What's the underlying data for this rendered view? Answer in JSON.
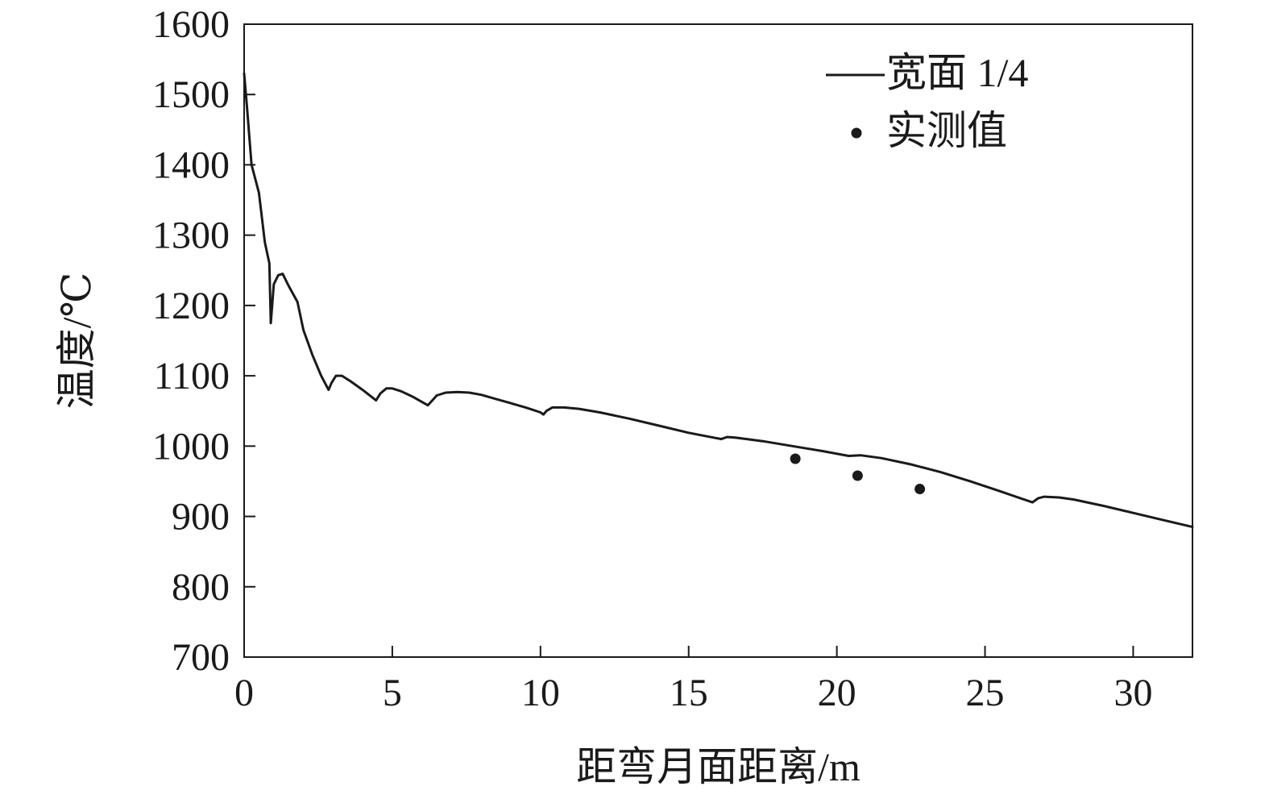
{
  "chart_data": {
    "type": "line",
    "xlabel": "距弯月面距离/m",
    "ylabel": "温度/℃",
    "xlim": [
      0,
      32
    ],
    "ylim": [
      700,
      1600
    ],
    "xticks": [
      0,
      5,
      10,
      15,
      20,
      25,
      30
    ],
    "yticks": [
      700,
      800,
      900,
      1000,
      1100,
      1200,
      1300,
      1400,
      1500,
      1600
    ],
    "grid": false,
    "legend_position": "top-right",
    "colors": {
      "line": "#1a1a1a",
      "marker": "#1a1a1a",
      "axis": "#1a1a1a"
    },
    "series": [
      {
        "name": "宽面 1/4",
        "type": "line",
        "x": [
          0.0,
          0.1,
          0.25,
          0.5,
          0.7,
          0.85,
          0.9,
          1.0,
          1.15,
          1.3,
          1.5,
          1.8,
          2.0,
          2.3,
          2.6,
          2.85,
          2.95,
          3.1,
          3.3,
          3.6,
          4.0,
          4.45,
          4.6,
          4.8,
          5.0,
          5.3,
          5.7,
          6.2,
          6.35,
          6.5,
          6.8,
          7.2,
          7.6,
          8.0,
          8.5,
          9.0,
          9.5,
          10.0,
          10.1,
          10.2,
          10.4,
          10.8,
          11.3,
          12.0,
          13.0,
          14.0,
          15.0,
          16.1,
          16.3,
          16.6,
          17.5,
          18.5,
          19.5,
          20.4,
          20.8,
          21.5,
          22.5,
          23.5,
          24.5,
          25.5,
          26.6,
          26.8,
          27.0,
          27.5,
          28.0,
          29.0,
          30.0,
          31.0,
          32.0
        ],
        "y": [
          1530,
          1480,
          1400,
          1360,
          1290,
          1260,
          1175,
          1230,
          1243,
          1245,
          1228,
          1205,
          1165,
          1130,
          1100,
          1080,
          1090,
          1100,
          1100,
          1092,
          1080,
          1065,
          1075,
          1082,
          1082,
          1078,
          1070,
          1058,
          1065,
          1072,
          1076,
          1077,
          1076,
          1073,
          1067,
          1061,
          1055,
          1048,
          1045,
          1050,
          1055,
          1055,
          1053,
          1048,
          1039,
          1029,
          1019,
          1010,
          1013,
          1012,
          1007,
          1000,
          993,
          986,
          987,
          983,
          974,
          963,
          950,
          936,
          920,
          926,
          928,
          927,
          924,
          915,
          905,
          895,
          885
        ]
      },
      {
        "name": "实测值",
        "type": "scatter",
        "x": [
          18.6,
          20.7,
          22.8
        ],
        "y": [
          982,
          958,
          939
        ]
      }
    ]
  }
}
